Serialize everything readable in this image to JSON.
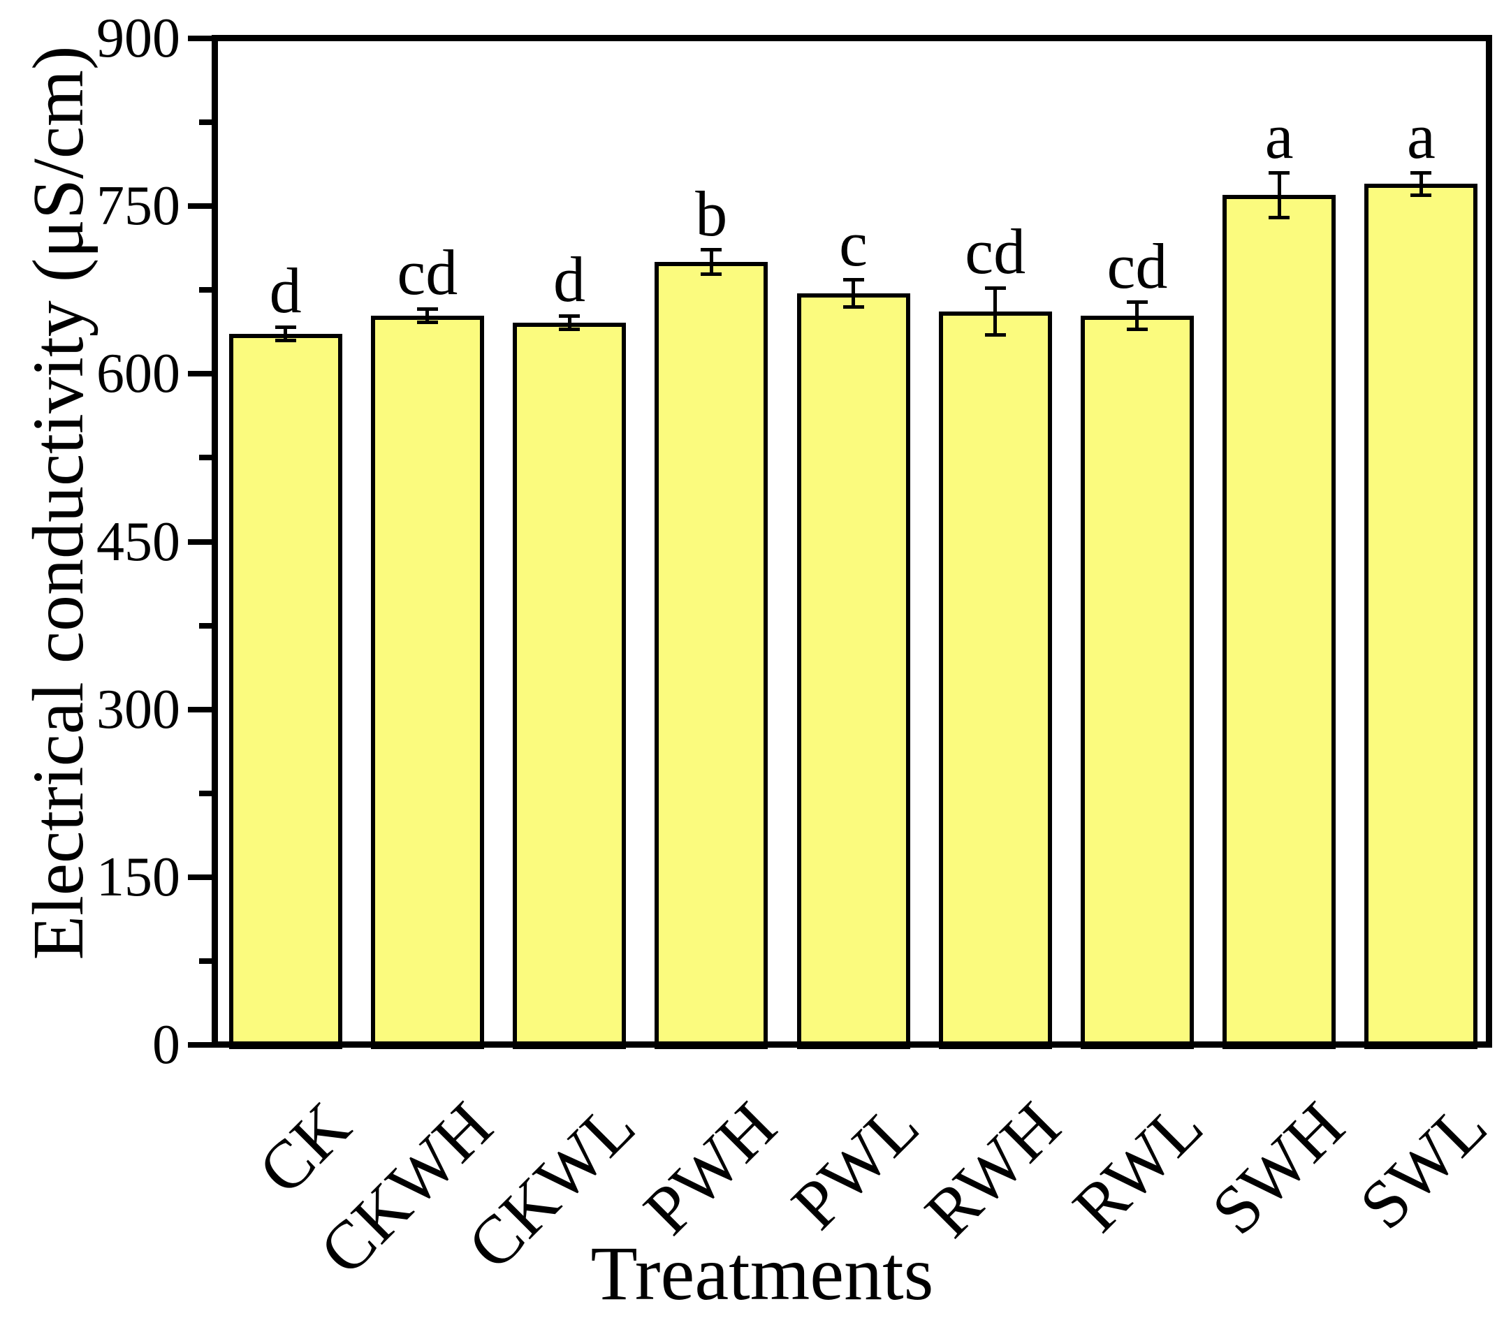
{
  "figure": {
    "x_axis_title": "Treatments",
    "y_axis_title": "Electrical conductivity (μS/cm)"
  },
  "chart_data": {
    "type": "bar",
    "title": "",
    "xlabel": "Treatments",
    "ylabel": "Electrical conductivity (μS/cm)",
    "categories": [
      "CK",
      "CKWH",
      "CKWL",
      "PWH",
      "PWL",
      "RWH",
      "RWL",
      "SWH",
      "SWL"
    ],
    "values": [
      636,
      652,
      646,
      700,
      672,
      656,
      652,
      760,
      770
    ],
    "errors": [
      6,
      6,
      6,
      11,
      12,
      21,
      12,
      20,
      10
    ],
    "sig_letters": [
      "d",
      "cd",
      "d",
      "b",
      "c",
      "cd",
      "cd",
      "a",
      "a"
    ],
    "ylim": [
      0,
      900
    ],
    "y_major_ticks": [
      0,
      150,
      300,
      450,
      600,
      750,
      900
    ],
    "y_minor_step": 75,
    "grid": "off",
    "legend": "none",
    "bar_fill": "#FBFB7E",
    "bar_border": "#000000",
    "axis_color": "#000000",
    "text_color": "#000000",
    "background": "#FFFFFF"
  }
}
